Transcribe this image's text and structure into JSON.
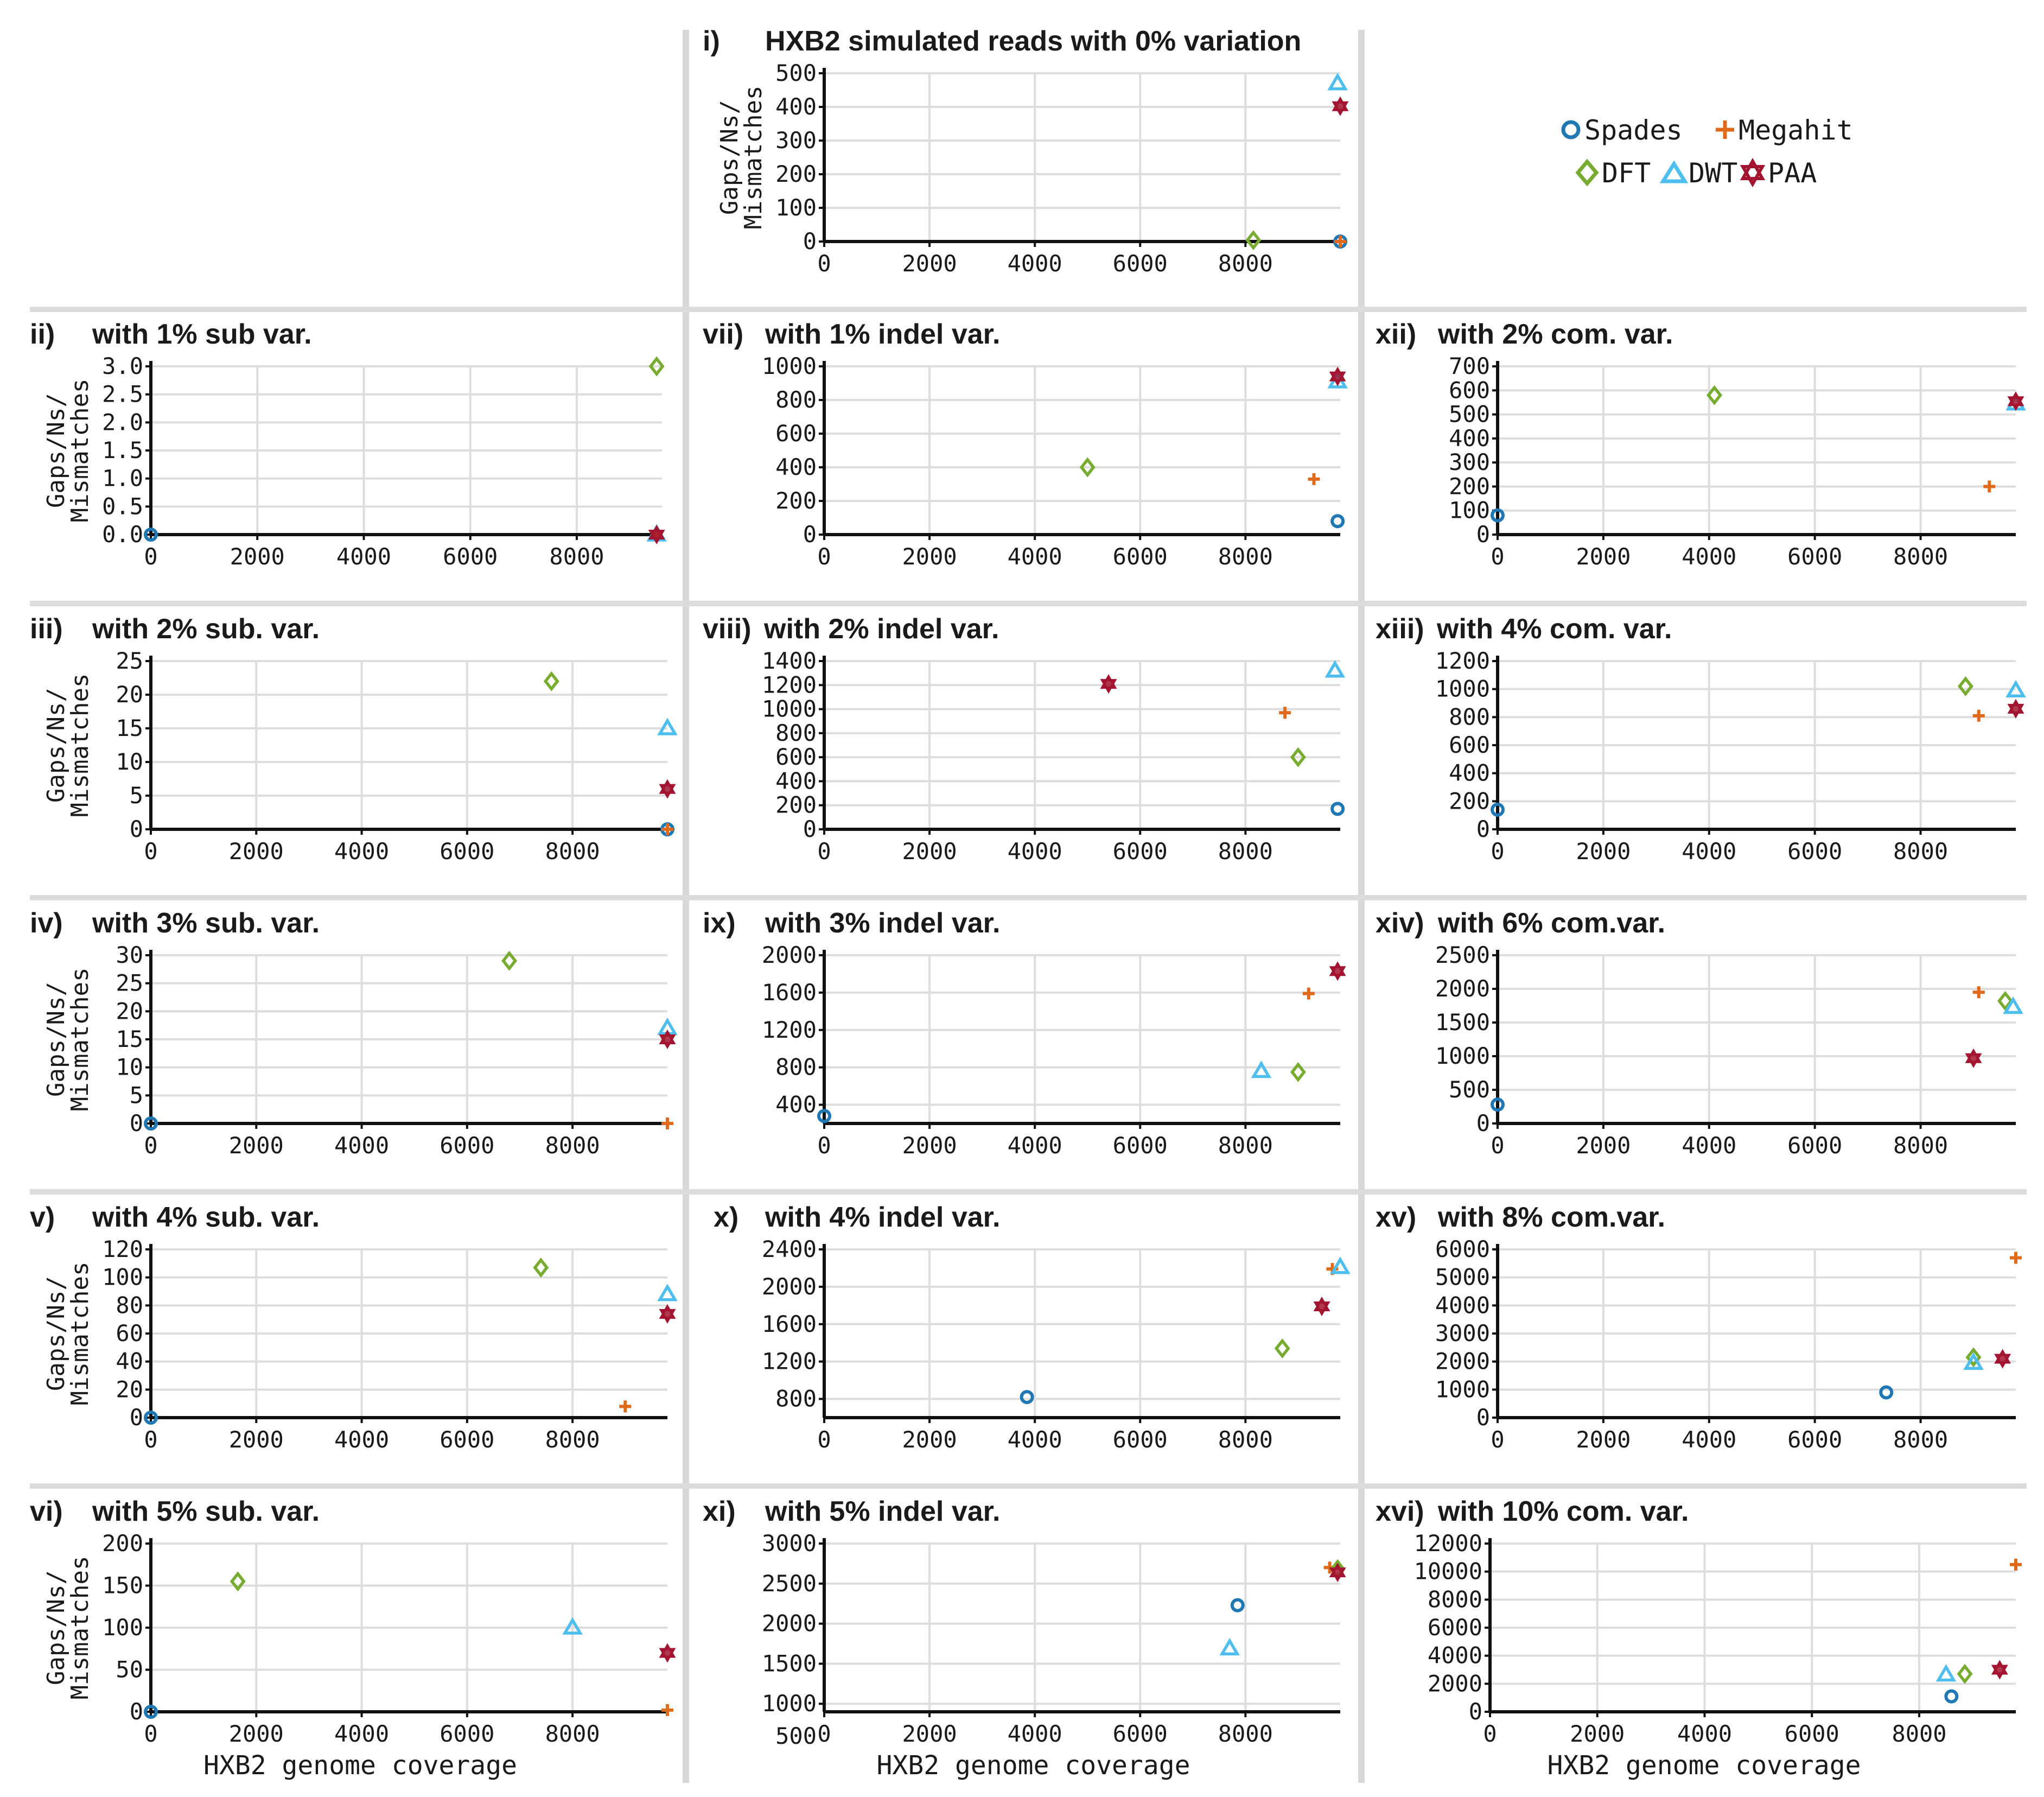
{
  "figure": {
    "ylabel_line1": "Gaps/Ns/",
    "ylabel_line2": "Mismatches",
    "xlabel": "HXB2 genome coverage"
  },
  "legend": {
    "items": [
      {
        "name": "Spades",
        "color": "#1f77b4",
        "marker": "circle-icon"
      },
      {
        "name": "Megahit",
        "color": "#e06a1c",
        "marker": "plus-icon"
      },
      {
        "name": "DFT",
        "color": "#77ac30",
        "marker": "diamond-icon"
      },
      {
        "name": "DWT",
        "color": "#4dbeee",
        "marker": "triangle-icon"
      },
      {
        "name": "PAA",
        "color": "#a2142f",
        "marker": "hexagram-icon"
      }
    ]
  },
  "chart_data": [
    {
      "id": "i",
      "type": "scatter",
      "num": "i)",
      "title": "HXB2 simulated reads with 0% variation",
      "xticks": [
        0,
        2000,
        4000,
        6000,
        8000
      ],
      "xlim": [
        0,
        9800
      ],
      "yticks": [
        0,
        100,
        200,
        300,
        400,
        500
      ],
      "ylim": [
        0,
        500
      ],
      "series": [
        {
          "name": "Spades",
          "points": [
            [
              9800,
              0
            ]
          ]
        },
        {
          "name": "Megahit",
          "points": [
            [
              9800,
              0
            ]
          ]
        },
        {
          "name": "DFT",
          "points": [
            [
              8150,
              4
            ]
          ]
        },
        {
          "name": "DWT",
          "points": [
            [
              9750,
              470
            ]
          ]
        },
        {
          "name": "PAA",
          "points": [
            [
              9800,
              402
            ]
          ]
        }
      ]
    },
    {
      "id": "ii",
      "type": "scatter",
      "num": "ii)",
      "title": "with 1% sub var.",
      "xticks": [
        0,
        2000,
        4000,
        6000,
        8000
      ],
      "xlim": [
        0,
        9600
      ],
      "yticks": [
        "0.0",
        "0.5",
        "1.0",
        "1.5",
        "2.0",
        "2.5",
        "3.0"
      ],
      "ylim": [
        0,
        3
      ],
      "series": [
        {
          "name": "Spades",
          "points": [
            [
              0,
              0
            ]
          ]
        },
        {
          "name": "Megahit",
          "points": [
            [
              9500,
              0
            ]
          ]
        },
        {
          "name": "DFT",
          "points": [
            [
              9500,
              3
            ]
          ]
        },
        {
          "name": "DWT",
          "points": [
            [
              9500,
              0
            ]
          ]
        },
        {
          "name": "PAA",
          "points": [
            [
              9500,
              0
            ]
          ]
        }
      ]
    },
    {
      "id": "iii",
      "type": "scatter",
      "num": "iii)",
      "title": "with 2% sub. var.",
      "xticks": [
        0,
        2000,
        4000,
        6000,
        8000
      ],
      "xlim": [
        0,
        9800
      ],
      "yticks": [
        0,
        5,
        10,
        15,
        20,
        25
      ],
      "ylim": [
        0,
        25
      ],
      "series": [
        {
          "name": "Spades",
          "points": [
            [
              9800,
              0
            ]
          ]
        },
        {
          "name": "Megahit",
          "points": [
            [
              9800,
              0
            ]
          ]
        },
        {
          "name": "DFT",
          "points": [
            [
              7600,
              22
            ]
          ]
        },
        {
          "name": "DWT",
          "points": [
            [
              9800,
              15
            ]
          ]
        },
        {
          "name": "PAA",
          "points": [
            [
              9800,
              6
            ]
          ]
        }
      ]
    },
    {
      "id": "iv",
      "type": "scatter",
      "num": "iv)",
      "title": "with 3% sub. var.",
      "xticks": [
        0,
        2000,
        4000,
        6000,
        8000
      ],
      "xlim": [
        0,
        9800
      ],
      "yticks": [
        0,
        5,
        10,
        15,
        20,
        25,
        30
      ],
      "ylim": [
        0,
        30
      ],
      "series": [
        {
          "name": "Spades",
          "points": [
            [
              0,
              0
            ]
          ]
        },
        {
          "name": "Megahit",
          "points": [
            [
              9800,
              0
            ]
          ]
        },
        {
          "name": "DFT",
          "points": [
            [
              6800,
              29
            ]
          ]
        },
        {
          "name": "DWT",
          "points": [
            [
              9800,
              17
            ]
          ]
        },
        {
          "name": "PAA",
          "points": [
            [
              9800,
              15
            ]
          ]
        }
      ]
    },
    {
      "id": "v",
      "type": "scatter",
      "num": "v)",
      "title": "with 4% sub. var.",
      "xticks": [
        0,
        2000,
        4000,
        6000,
        8000
      ],
      "xlim": [
        0,
        9800
      ],
      "yticks": [
        0,
        20,
        40,
        60,
        80,
        100,
        120
      ],
      "ylim": [
        0,
        120
      ],
      "series": [
        {
          "name": "Spades",
          "points": [
            [
              0,
              0
            ]
          ]
        },
        {
          "name": "Megahit",
          "points": [
            [
              9000,
              8
            ]
          ]
        },
        {
          "name": "DFT",
          "points": [
            [
              7400,
              107
            ]
          ]
        },
        {
          "name": "DWT",
          "points": [
            [
              9800,
              88
            ]
          ]
        },
        {
          "name": "PAA",
          "points": [
            [
              9800,
              74
            ]
          ]
        }
      ]
    },
    {
      "id": "vi",
      "type": "scatter",
      "num": "vi)",
      "title": "with 5% sub. var.",
      "xticks": [
        0,
        2000,
        4000,
        6000,
        8000
      ],
      "xlim": [
        0,
        9800
      ],
      "yticks": [
        0,
        50,
        100,
        150,
        200
      ],
      "ylim": [
        0,
        200
      ],
      "series": [
        {
          "name": "Spades",
          "points": [
            [
              0,
              0
            ]
          ]
        },
        {
          "name": "Megahit",
          "points": [
            [
              9800,
              2
            ]
          ]
        },
        {
          "name": "DFT",
          "points": [
            [
              1650,
              155
            ]
          ]
        },
        {
          "name": "DWT",
          "points": [
            [
              8000,
              100
            ]
          ]
        },
        {
          "name": "PAA",
          "points": [
            [
              9800,
              70
            ]
          ]
        }
      ]
    },
    {
      "id": "vii",
      "type": "scatter",
      "num": "vii)",
      "title": "with 1% indel var.",
      "xticks": [
        0,
        2000,
        4000,
        6000,
        8000
      ],
      "xlim": [
        0,
        9800
      ],
      "yticks": [
        0,
        200,
        400,
        600,
        800,
        1000
      ],
      "ylim": [
        0,
        1000
      ],
      "series": [
        {
          "name": "Spades",
          "points": [
            [
              9750,
              80
            ]
          ]
        },
        {
          "name": "Megahit",
          "points": [
            [
              9300,
              330
            ]
          ]
        },
        {
          "name": "DFT",
          "points": [
            [
              5000,
              400
            ]
          ]
        },
        {
          "name": "DWT",
          "points": [
            [
              9750,
              910
            ]
          ]
        },
        {
          "name": "PAA",
          "points": [
            [
              9750,
              940
            ]
          ]
        }
      ]
    },
    {
      "id": "viii",
      "type": "scatter",
      "num": "viii)",
      "title": "with 2% indel var.",
      "xticks": [
        0,
        2000,
        4000,
        6000,
        8000
      ],
      "xlim": [
        0,
        9800
      ],
      "yticks": [
        0,
        200,
        400,
        600,
        800,
        1000,
        1200,
        1400
      ],
      "ylim": [
        0,
        1400
      ],
      "series": [
        {
          "name": "Spades",
          "points": [
            [
              9750,
              170
            ]
          ]
        },
        {
          "name": "Megahit",
          "points": [
            [
              8750,
              970
            ]
          ]
        },
        {
          "name": "DFT",
          "points": [
            [
              9000,
              600
            ]
          ]
        },
        {
          "name": "DWT",
          "points": [
            [
              9700,
              1320
            ]
          ]
        },
        {
          "name": "PAA",
          "points": [
            [
              5400,
              1210
            ]
          ]
        }
      ]
    },
    {
      "id": "ix",
      "type": "scatter",
      "num": "ix)",
      "title": "with 3% indel var.",
      "xticks": [
        0,
        2000,
        4000,
        6000,
        8000
      ],
      "xlim": [
        0,
        9800
      ],
      "yticks": [
        400,
        800,
        1200,
        1600,
        2000
      ],
      "ylim": [
        200,
        2000
      ],
      "series": [
        {
          "name": "Spades",
          "points": [
            [
              0,
              280
            ]
          ]
        },
        {
          "name": "Megahit",
          "points": [
            [
              9200,
              1590
            ]
          ]
        },
        {
          "name": "DFT",
          "points": [
            [
              9000,
              750
            ]
          ]
        },
        {
          "name": "DWT",
          "points": [
            [
              8300,
              760
            ]
          ]
        },
        {
          "name": "PAA",
          "points": [
            [
              9750,
              1830
            ]
          ]
        }
      ]
    },
    {
      "id": "x",
      "type": "scatter",
      "num": "x)",
      "title": "with 4% indel var.",
      "xticks": [
        0,
        2000,
        4000,
        6000,
        8000
      ],
      "xlim": [
        0,
        9800
      ],
      "yticks": [
        800,
        1200,
        1600,
        2000,
        2400
      ],
      "ylim": [
        600,
        2400
      ],
      "series": [
        {
          "name": "Spades",
          "points": [
            [
              3850,
              820
            ]
          ]
        },
        {
          "name": "Megahit",
          "points": [
            [
              9650,
              2190
            ]
          ]
        },
        {
          "name": "DFT",
          "points": [
            [
              8700,
              1340
            ]
          ]
        },
        {
          "name": "DWT",
          "points": [
            [
              9800,
              2210
            ]
          ]
        },
        {
          "name": "PAA",
          "points": [
            [
              9450,
              1790
            ]
          ]
        }
      ]
    },
    {
      "id": "xi",
      "type": "scatter",
      "num": "xi)",
      "title": "with 5% indel var.",
      "xticks": [
        0,
        2000,
        4000,
        6000,
        8000
      ],
      "xlim": [
        0,
        9800
      ],
      "yticks": [
        500,
        1000,
        1500,
        2000,
        2500,
        3000
      ],
      "ylim": [
        900,
        3000
      ],
      "series": [
        {
          "name": "Spades",
          "points": [
            [
              7850,
              2230
            ]
          ]
        },
        {
          "name": "Megahit",
          "points": [
            [
              9600,
              2700
            ]
          ]
        },
        {
          "name": "DFT",
          "points": [
            [
              9750,
              2680
            ]
          ]
        },
        {
          "name": "DWT",
          "points": [
            [
              7700,
              1690
            ]
          ]
        },
        {
          "name": "PAA",
          "points": [
            [
              9750,
              2640
            ]
          ]
        }
      ]
    },
    {
      "id": "xii",
      "type": "scatter",
      "num": "xii)",
      "title": "with 2% com. var.",
      "xticks": [
        0,
        2000,
        4000,
        6000,
        8000
      ],
      "xlim": [
        0,
        9800
      ],
      "yticks": [
        0,
        100,
        200,
        300,
        400,
        500,
        600,
        700
      ],
      "ylim": [
        0,
        700
      ],
      "series": [
        {
          "name": "Spades",
          "points": [
            [
              0,
              80
            ]
          ]
        },
        {
          "name": "Megahit",
          "points": [
            [
              9300,
              200
            ]
          ]
        },
        {
          "name": "DFT",
          "points": [
            [
              4100,
              580
            ]
          ]
        },
        {
          "name": "DWT",
          "points": [
            [
              9800,
              545
            ]
          ]
        },
        {
          "name": "PAA",
          "points": [
            [
              9800,
              555
            ]
          ]
        }
      ]
    },
    {
      "id": "xiii",
      "type": "scatter",
      "num": "xiii)",
      "title": "with 4% com. var.",
      "xticks": [
        0,
        2000,
        4000,
        6000,
        8000
      ],
      "xlim": [
        0,
        9800
      ],
      "yticks": [
        0,
        200,
        400,
        600,
        800,
        1000,
        1200
      ],
      "ylim": [
        0,
        1200
      ],
      "series": [
        {
          "name": "Spades",
          "points": [
            [
              0,
              140
            ]
          ]
        },
        {
          "name": "Megahit",
          "points": [
            [
              9100,
              810
            ]
          ]
        },
        {
          "name": "DFT",
          "points": [
            [
              8850,
              1020
            ]
          ]
        },
        {
          "name": "DWT",
          "points": [
            [
              9800,
              990
            ]
          ]
        },
        {
          "name": "PAA",
          "points": [
            [
              9800,
              860
            ]
          ]
        }
      ]
    },
    {
      "id": "xiv",
      "type": "scatter",
      "num": "xiv)",
      "title": "with 6% com.var.",
      "xticks": [
        0,
        2000,
        4000,
        6000,
        8000
      ],
      "xlim": [
        0,
        9800
      ],
      "yticks": [
        0,
        500,
        1000,
        1500,
        2000,
        2500
      ],
      "ylim": [
        0,
        2500
      ],
      "series": [
        {
          "name": "Spades",
          "points": [
            [
              0,
              280
            ]
          ]
        },
        {
          "name": "Megahit",
          "points": [
            [
              9100,
              1950
            ]
          ]
        },
        {
          "name": "DFT",
          "points": [
            [
              9600,
              1820
            ]
          ]
        },
        {
          "name": "DWT",
          "points": [
            [
              9750,
              1730
            ]
          ]
        },
        {
          "name": "PAA",
          "points": [
            [
              9000,
              970
            ]
          ]
        }
      ]
    },
    {
      "id": "xv",
      "type": "scatter",
      "num": "xv)",
      "title": "with 8% com.var.",
      "xticks": [
        0,
        2000,
        4000,
        6000,
        8000
      ],
      "xlim": [
        0,
        9800
      ],
      "yticks": [
        0,
        1000,
        2000,
        3000,
        4000,
        5000,
        6000
      ],
      "ylim": [
        0,
        6000
      ],
      "series": [
        {
          "name": "Spades",
          "points": [
            [
              7350,
              900
            ]
          ]
        },
        {
          "name": "Megahit",
          "points": [
            [
              9800,
              5700
            ]
          ]
        },
        {
          "name": "DFT",
          "points": [
            [
              9000,
              2150
            ]
          ]
        },
        {
          "name": "DWT",
          "points": [
            [
              9000,
              1950
            ]
          ]
        },
        {
          "name": "PAA",
          "points": [
            [
              9550,
              2100
            ]
          ]
        }
      ]
    },
    {
      "id": "xvi",
      "type": "scatter",
      "num": "xvi)",
      "title": "with 10% com. var.",
      "xticks": [
        0,
        2000,
        4000,
        6000,
        8000
      ],
      "xlim": [
        0,
        9800
      ],
      "yticks": [
        0,
        2000,
        4000,
        6000,
        8000,
        10000,
        12000
      ],
      "ylim": [
        0,
        12000
      ],
      "series": [
        {
          "name": "Spades",
          "points": [
            [
              8600,
              1100
            ]
          ]
        },
        {
          "name": "Megahit",
          "points": [
            [
              9800,
              10500
            ]
          ]
        },
        {
          "name": "DFT",
          "points": [
            [
              8850,
              2700
            ]
          ]
        },
        {
          "name": "DWT",
          "points": [
            [
              8500,
              2650
            ]
          ]
        },
        {
          "name": "PAA",
          "points": [
            [
              9500,
              3000
            ]
          ]
        }
      ]
    }
  ]
}
